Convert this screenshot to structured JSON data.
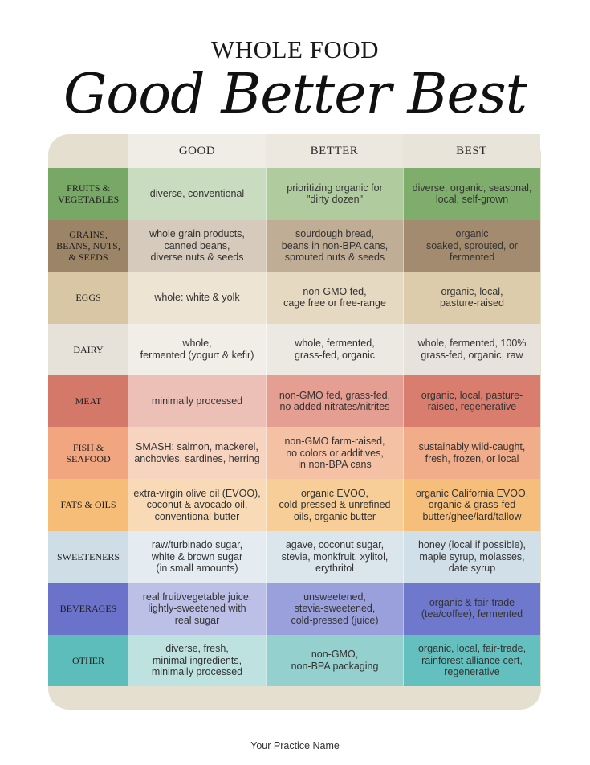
{
  "header": {
    "subtitle": "WHOLE FOOD",
    "title": "Good Better Best"
  },
  "columns": [
    "GOOD",
    "BETTER",
    "BEST"
  ],
  "rows": [
    {
      "label": "FRUITS &\nVEGETABLES",
      "good": "diverse, conventional",
      "better": "prioritizing organic for\n\"dirty dozen\"",
      "best": "diverse, organic, seasonal,\nlocal, self-grown",
      "colors": {
        "label": "#78a865",
        "good": "#c9dcc0",
        "better": "#b0cc9f",
        "best": "#7fae6c"
      }
    },
    {
      "label": "GRAINS,\nBEANS, NUTS,\n& SEEDS",
      "good": "whole grain products,\ncanned beans,\ndiverse nuts & seeds",
      "better": "sourdough bread,\nbeans in non-BPA cans,\nsprouted nuts & seeds",
      "best": "organic\nsoaked, sprouted, or\nfermented",
      "colors": {
        "label": "#9c8467",
        "good": "#d5cabb",
        "better": "#c0ad96",
        "best": "#a28b6e"
      }
    },
    {
      "label": "EGGS",
      "good": "whole: white & yolk",
      "better": "non-GMO fed,\ncage free or free-range",
      "best": "organic, local,\npasture-raised",
      "colors": {
        "label": "#d9c6a4",
        "good": "#ede4d3",
        "better": "#e6d9c2",
        "best": "#ddccac"
      }
    },
    {
      "label": "DAIRY",
      "good": "whole,\nfermented (yogurt & kefir)",
      "better": "whole, fermented,\ngrass-fed, organic",
      "best": "whole, fermented, 100%\ngrass-fed, organic, raw",
      "colors": {
        "label": "#e6e2da",
        "good": "#f1eee8",
        "better": "#ece9e2",
        "best": "#e7e3dc"
      }
    },
    {
      "label": "MEAT",
      "good": "minimally processed",
      "better": "non-GMO fed, grass-fed,\nno added nitrates/nitrites",
      "best": "organic, local, pasture-\nraised, regenerative",
      "colors": {
        "label": "#d47869",
        "good": "#ecc0b6",
        "better": "#e59f92",
        "best": "#d97e6e"
      }
    },
    {
      "label": "FISH &\nSEAFOOD",
      "good": "SMASH: salmon, mackerel,\nanchovies, sardines, herring",
      "better": "non-GMO farm-raised,\nno colors or additives,\nin non-BPA cans",
      "best": "sustainably wild-caught,\nfresh, frozen, or local",
      "colors": {
        "label": "#f1a680",
        "good": "#f7d4bf",
        "better": "#f4c1a5",
        "best": "#f1ad8a"
      }
    },
    {
      "label": "FATS & OILS",
      "good": "extra-virgin olive oil (EVOO),\ncoconut & avocado oil,\nconventional butter",
      "better": "organic EVOO,\ncold-pressed & unrefined\noils, organic butter",
      "best": "organic California EVOO,\norganic & grass-fed\nbutter/ghee/lard/tallow",
      "colors": {
        "label": "#f5bd78",
        "good": "#f8dbb6",
        "better": "#f7cd98",
        "best": "#f6be7b"
      }
    },
    {
      "label": "SWEETENERS",
      "good": "raw/turbinado sugar,\nwhite & brown sugar\n(in small amounts)",
      "better": "agave, coconut sugar,\nstevia, monkfruit, xylitol,\nerythritol",
      "best": "honey (local if possible),\nmaple syrup, molasses,\ndate syrup",
      "colors": {
        "label": "#cfdde6",
        "good": "#e4ecf1",
        "better": "#dae5ec",
        "best": "#d1dfe8"
      }
    },
    {
      "label": "BEVERAGES",
      "good": "real fruit/vegetable juice,\nlightly-sweetened with\nreal sugar",
      "better": "unsweetened,\nstevia-sweetened,\ncold-pressed (juice)",
      "best": "organic & fair-trade\n(tea/coffee), fermented",
      "colors": {
        "label": "#6a73c9",
        "good": "#bcc0e6",
        "better": "#9aa0dc",
        "best": "#6e78cc"
      }
    },
    {
      "label": "OTHER",
      "good": "diverse, fresh,\nminimal ingredients,\nminimally processed",
      "better": "non-GMO,\nnon-BPA packaging",
      "best": "organic, local, fair-trade,\nrainforest alliance cert,\nregenerative",
      "colors": {
        "label": "#5dbdbb",
        "good": "#bde2e0",
        "better": "#94d0ce",
        "best": "#63c0be"
      }
    }
  ],
  "footer": "Your Practice Name"
}
